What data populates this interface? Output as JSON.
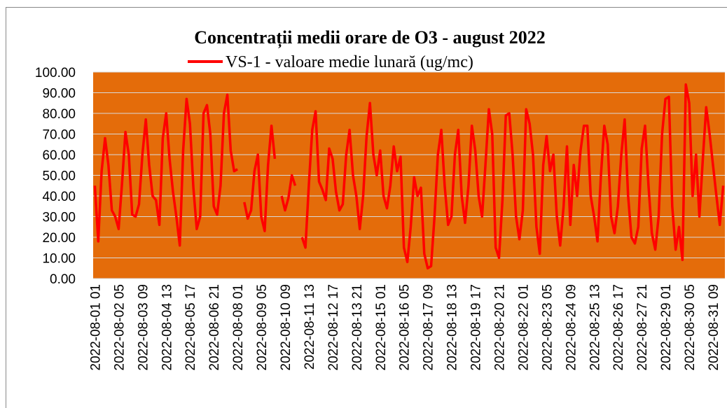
{
  "chart_data": {
    "type": "line",
    "title": "Concentrații medii orare de O3 - august 2022",
    "categories": [
      "2022-08-01 01",
      null,
      null,
      null,
      null,
      null,
      null,
      "2022-08-02 05",
      null,
      null,
      null,
      null,
      null,
      null,
      "2022-08-03 09",
      null,
      null,
      null,
      null,
      null,
      null,
      "2022-08-04 13",
      null,
      null,
      null,
      null,
      null,
      null,
      "2022-08-05 17",
      null,
      null,
      null,
      null,
      null,
      null,
      "2022-08-06 21",
      null,
      null,
      null,
      null,
      null,
      null,
      "2022-08-08 01",
      null,
      null,
      null,
      null,
      null,
      null,
      "2022-08-09 05",
      null,
      null,
      null,
      null,
      null,
      null,
      "2022-08-10 09",
      null,
      null,
      null,
      null,
      null,
      null,
      "2022-08-11 13",
      null,
      null,
      null,
      null,
      null,
      null,
      "2022-08-12 17",
      null,
      null,
      null,
      null,
      null,
      null,
      "2022-08-13 21",
      null,
      null,
      null,
      null,
      null,
      null,
      "2022-08-15 01",
      null,
      null,
      null,
      null,
      null,
      null,
      "2022-08-16 05",
      null,
      null,
      null,
      null,
      null,
      null,
      "2022-08-17 09",
      null,
      null,
      null,
      null,
      null,
      null,
      "2022-08-18 13",
      null,
      null,
      null,
      null,
      null,
      null,
      "2022-08-19 17",
      null,
      null,
      null,
      null,
      null,
      null,
      "2022-08-20 21",
      null,
      null,
      null,
      null,
      null,
      null,
      "2022-08-22 01",
      null,
      null,
      null,
      null,
      null,
      null,
      "2022-08-23 05",
      null,
      null,
      null,
      null,
      null,
      null,
      "2022-08-24 09",
      null,
      null,
      null,
      null,
      null,
      null,
      "2022-08-25 13",
      null,
      null,
      null,
      null,
      null,
      null,
      "2022-08-26 17",
      null,
      null,
      null,
      null,
      null,
      null,
      "2022-08-27 21",
      null,
      null,
      null,
      null,
      null,
      null,
      "2022-08-29 01",
      null,
      null,
      null,
      null,
      null,
      null,
      "2022-08-30 05",
      null,
      null,
      null,
      null,
      null,
      null,
      "2022-08-31 09",
      null,
      null,
      null
    ],
    "series": [
      {
        "name": "VS-1 - valoare medie lunară (ug/mc)",
        "color": "#ff0000",
        "values": [
          45,
          18,
          52,
          68,
          55,
          33,
          30,
          24,
          46,
          71,
          60,
          31,
          30,
          36,
          60,
          77,
          55,
          40,
          38,
          26,
          68,
          80,
          58,
          42,
          30,
          16,
          62,
          87,
          75,
          44,
          24,
          30,
          80,
          84,
          70,
          35,
          31,
          45,
          80,
          89,
          62,
          52,
          53,
          null,
          37,
          29,
          33,
          52,
          60,
          30,
          23,
          55,
          74,
          58,
          null,
          40,
          33,
          39,
          50,
          45,
          null,
          20,
          15,
          45,
          72,
          81,
          47,
          43,
          38,
          63,
          58,
          42,
          33,
          36,
          60,
          72,
          50,
          40,
          24,
          40,
          69,
          85,
          60,
          50,
          62,
          40,
          34,
          45,
          64,
          52,
          59,
          15,
          8,
          25,
          49,
          40,
          44,
          12,
          5,
          6,
          30,
          60,
          72,
          45,
          26,
          30,
          60,
          72,
          40,
          27,
          45,
          74,
          62,
          40,
          30,
          55,
          82,
          70,
          15,
          10,
          38,
          79,
          80,
          60,
          30,
          19,
          33,
          82,
          75,
          60,
          25,
          12,
          55,
          69,
          52,
          60,
          30,
          16,
          35,
          64,
          26,
          55,
          40,
          62,
          74,
          74,
          40,
          30,
          18,
          50,
          74,
          65,
          30,
          22,
          35,
          60,
          77,
          40,
          20,
          17,
          25,
          63,
          74,
          45,
          22,
          14,
          30,
          70,
          87,
          88,
          35,
          14,
          25,
          9,
          94,
          85,
          40,
          60,
          30,
          58,
          83,
          70,
          55,
          40,
          26,
          45
        ]
      }
    ],
    "ylim": [
      0,
      100
    ],
    "yticks": [
      {
        "value": 0,
        "label": "0.00"
      },
      {
        "value": 10,
        "label": "10.00"
      },
      {
        "value": 20,
        "label": "20.00"
      },
      {
        "value": 30,
        "label": "30.00"
      },
      {
        "value": 40,
        "label": "40.00"
      },
      {
        "value": 50,
        "label": "50.00"
      },
      {
        "value": 60,
        "label": "60.00"
      },
      {
        "value": 70,
        "label": "70.00"
      },
      {
        "value": 80,
        "label": "80.00"
      },
      {
        "value": 90,
        "label": "90.00"
      },
      {
        "value": 100,
        "label": "100.00"
      }
    ],
    "grid": true,
    "plot_background": "#e46c0a",
    "legend": "top"
  }
}
